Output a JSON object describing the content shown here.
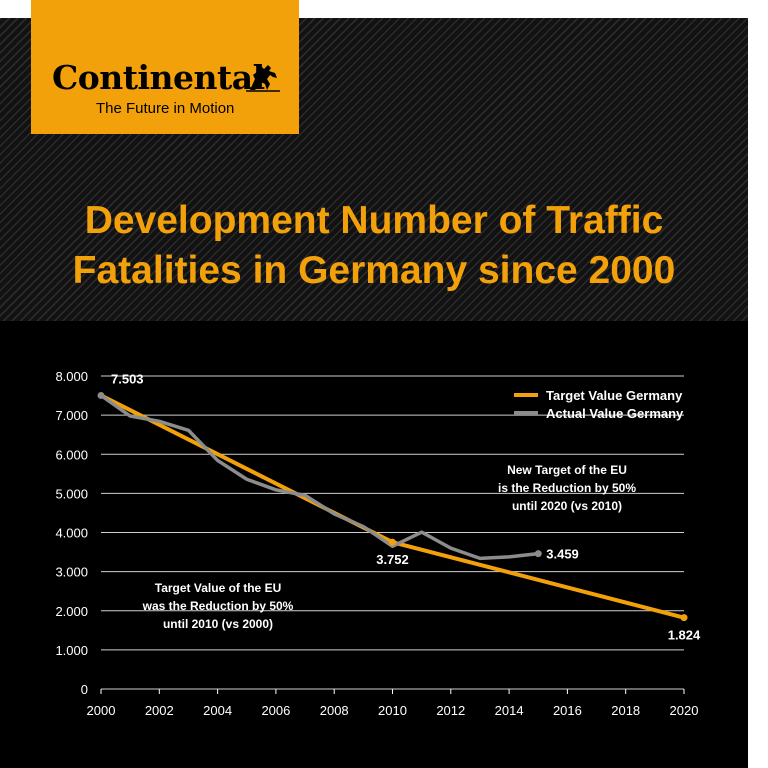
{
  "brand": {
    "name": "Continental",
    "tagline": "The Future in Motion",
    "colors": {
      "accent": "#f3a10b",
      "background": "#000000",
      "actual": "#8c8c8c"
    }
  },
  "title": {
    "line1": "Development Number of Traffic",
    "line2": "Fatalities in Germany since 2000"
  },
  "chart_data": {
    "type": "line",
    "title": "Development Number of Traffic Fatalities in Germany since 2000",
    "xlabel": "",
    "ylabel": "",
    "xlim": [
      2000,
      2020
    ],
    "ylim": [
      0,
      8000
    ],
    "grid": true,
    "legend_position": "top-right",
    "x_ticks": [
      2000,
      2002,
      2004,
      2006,
      2008,
      2010,
      2012,
      2014,
      2016,
      2018,
      2020
    ],
    "y_ticks": [
      0,
      1000,
      2000,
      3000,
      4000,
      5000,
      6000,
      7000,
      8000
    ],
    "y_tick_labels": [
      "0",
      "1.000",
      "2.000",
      "3.000",
      "4.000",
      "5.000",
      "6.000",
      "7.000",
      "8.000"
    ],
    "series": [
      {
        "name": "Target Value Germany",
        "color": "#f3a10b",
        "points": [
          [
            2000,
            7503
          ],
          [
            2010,
            3752
          ],
          [
            2020,
            1824
          ]
        ]
      },
      {
        "name": "Actual Value Germany",
        "color": "#8c8c8c",
        "points": [
          [
            2000,
            7503
          ],
          [
            2001,
            6977
          ],
          [
            2002,
            6842
          ],
          [
            2003,
            6613
          ],
          [
            2004,
            5842
          ],
          [
            2005,
            5361
          ],
          [
            2006,
            5091
          ],
          [
            2007,
            4949
          ],
          [
            2008,
            4477
          ],
          [
            2009,
            4152
          ],
          [
            2010,
            3648
          ],
          [
            2011,
            4009
          ],
          [
            2012,
            3600
          ],
          [
            2013,
            3339
          ],
          [
            2014,
            3377
          ],
          [
            2015,
            3459
          ]
        ]
      }
    ],
    "data_labels": [
      {
        "text": "7.503",
        "x": 2000,
        "y": 7503
      },
      {
        "text": "3.752",
        "x": 2010,
        "y": 3752
      },
      {
        "text": "3.459",
        "x": 2015,
        "y": 3459
      },
      {
        "text": "1.824",
        "x": 2020,
        "y": 1824
      }
    ],
    "annotations": [
      {
        "lines": [
          "New Target of the EU",
          "is the Reduction by 50%",
          "until 2020 (vs 2010)"
        ]
      },
      {
        "lines": [
          "Target Value of the EU",
          "was the Reduction by 50%",
          "until 2010 (vs 2000)"
        ]
      }
    ]
  }
}
